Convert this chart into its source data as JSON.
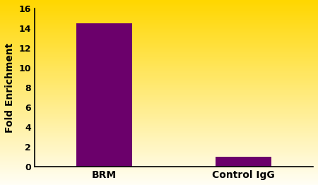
{
  "categories": [
    "BRM",
    "Control IgG"
  ],
  "values": [
    14.5,
    1.0
  ],
  "bar_color": "#6B006B",
  "bar_width": 0.4,
  "ylabel": "Fold Enrichment",
  "ylim": [
    0,
    16
  ],
  "yticks": [
    0,
    2,
    4,
    6,
    8,
    10,
    12,
    14,
    16
  ],
  "bg_top_color": "#FFD700",
  "bg_bottom_color": "#FFFEF5",
  "ylabel_fontsize": 10,
  "tick_fontsize": 9,
  "label_fontsize": 10
}
